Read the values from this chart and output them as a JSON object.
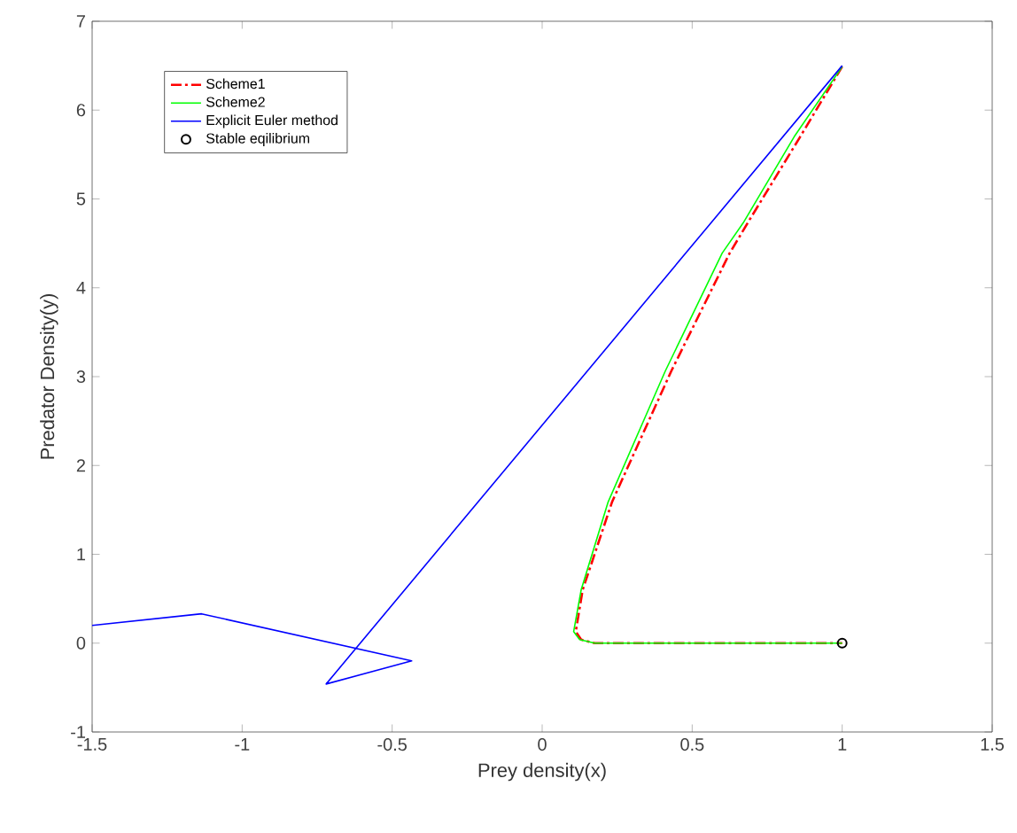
{
  "chart_data": {
    "type": "line",
    "xlabel": "Prey density(x)",
    "ylabel": "Predator Density(y)",
    "xlim": [
      -1.5,
      1.5
    ],
    "ylim": [
      -1,
      7
    ],
    "xticks": [
      -1.5,
      -1,
      -0.5,
      0,
      0.5,
      1,
      1.5
    ],
    "yticks": [
      -1,
      0,
      1,
      2,
      3,
      4,
      5,
      6,
      7
    ],
    "grid": false,
    "legend": "top left",
    "series": [
      {
        "name": "Scheme1",
        "color": "#ff0000",
        "line_style": "dashed",
        "x": [
          1,
          0.86,
          0.685,
          0.625,
          0.43,
          0.233,
          0.135,
          0.112,
          0.13,
          0.175,
          1
        ],
        "values": [
          6.49,
          5.7,
          4.73,
          4.39,
          3.06,
          1.59,
          0.6,
          0.13,
          0.04,
          0,
          0
        ]
      },
      {
        "name": "Scheme2",
        "color": "#00ff00",
        "line_style": "solid",
        "x": [
          1,
          0.84,
          0.67,
          0.6,
          0.41,
          0.22,
          0.13,
          0.105,
          0.125,
          0.175,
          1
        ],
        "values": [
          6.49,
          5.7,
          4.73,
          4.39,
          3.06,
          1.59,
          0.6,
          0.13,
          0.04,
          0,
          0
        ]
      },
      {
        "name": "Explicit Euler method",
        "color": "#0000ff",
        "line_style": "solid",
        "x": [
          -1.5,
          -1.135,
          -0.435,
          -0.72,
          1
        ],
        "values": [
          0.2,
          0.33,
          -0.2,
          -0.46,
          6.5
        ]
      },
      {
        "name": "Stable eqilibrium",
        "type": "scatter",
        "color": "#000000",
        "marker": "circle",
        "x": [
          1
        ],
        "values": [
          0
        ]
      }
    ]
  }
}
